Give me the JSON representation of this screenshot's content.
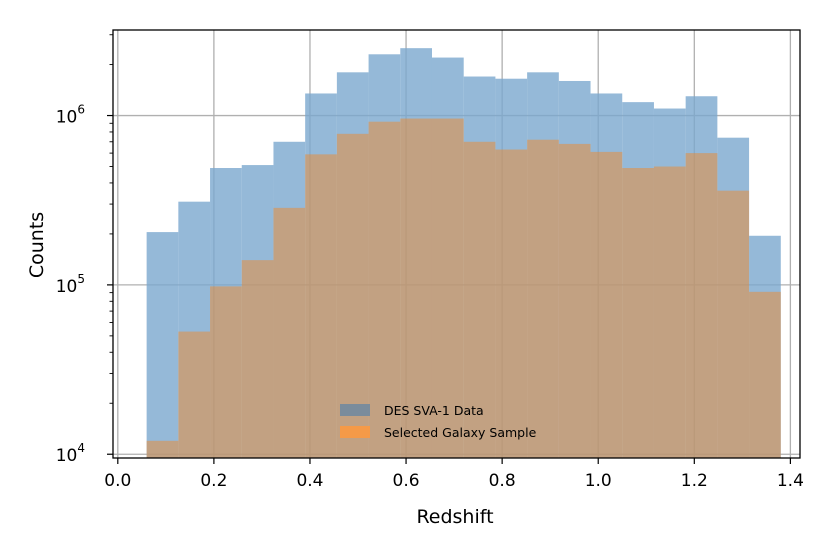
{
  "chart_data": {
    "type": "bar",
    "xlabel": "Redshift",
    "ylabel": "Counts",
    "y_scale": "log",
    "xlim": [
      -0.01,
      1.42
    ],
    "ylim": [
      9500,
      3200000
    ],
    "x_ticks": [
      0.0,
      0.2,
      0.4,
      0.6,
      0.8,
      1.0,
      1.2,
      1.4
    ],
    "x_tick_labels": [
      "0.0",
      "0.2",
      "0.4",
      "0.6",
      "0.8",
      "1.0",
      "1.2",
      "1.4"
    ],
    "y_ticks": [
      {
        "value": 10000,
        "base": "10",
        "exp": "4"
      },
      {
        "value": 100000,
        "base": "10",
        "exp": "5"
      },
      {
        "value": 1000000,
        "base": "10",
        "exp": "6"
      }
    ],
    "grid": true,
    "legend_position": "lower-center",
    "bin_edges": [
      0.06,
      0.126,
      0.192,
      0.258,
      0.324,
      0.39,
      0.456,
      0.522,
      0.588,
      0.654,
      0.72,
      0.786,
      0.852,
      0.918,
      0.984,
      1.05,
      1.116,
      1.182,
      1.248,
      1.314,
      1.38
    ],
    "series": [
      {
        "name": "DES SVA-1 Data",
        "color": "#7ba7ce",
        "alpha": 0.8,
        "values": [
          205000,
          310000,
          490000,
          510000,
          700000,
          1350000,
          1800000,
          2300000,
          2500000,
          2200000,
          1700000,
          1650000,
          1800000,
          1600000,
          1350000,
          1200000,
          1100000,
          1300000,
          740000,
          195000
        ]
      },
      {
        "name": "Selected Galaxy Sample",
        "color": "#f08a2c",
        "alpha": 0.5,
        "values": [
          12000,
          53000,
          98000,
          140000,
          285000,
          590000,
          780000,
          920000,
          960000,
          960000,
          700000,
          630000,
          720000,
          680000,
          610000,
          490000,
          500000,
          600000,
          360000,
          91000
        ]
      }
    ],
    "legend_items": [
      {
        "label": "DES SVA-1 Data",
        "swatch_color": "#7a8c9c"
      },
      {
        "label": "Selected Galaxy Sample",
        "swatch_color": "#f59a48"
      }
    ]
  }
}
